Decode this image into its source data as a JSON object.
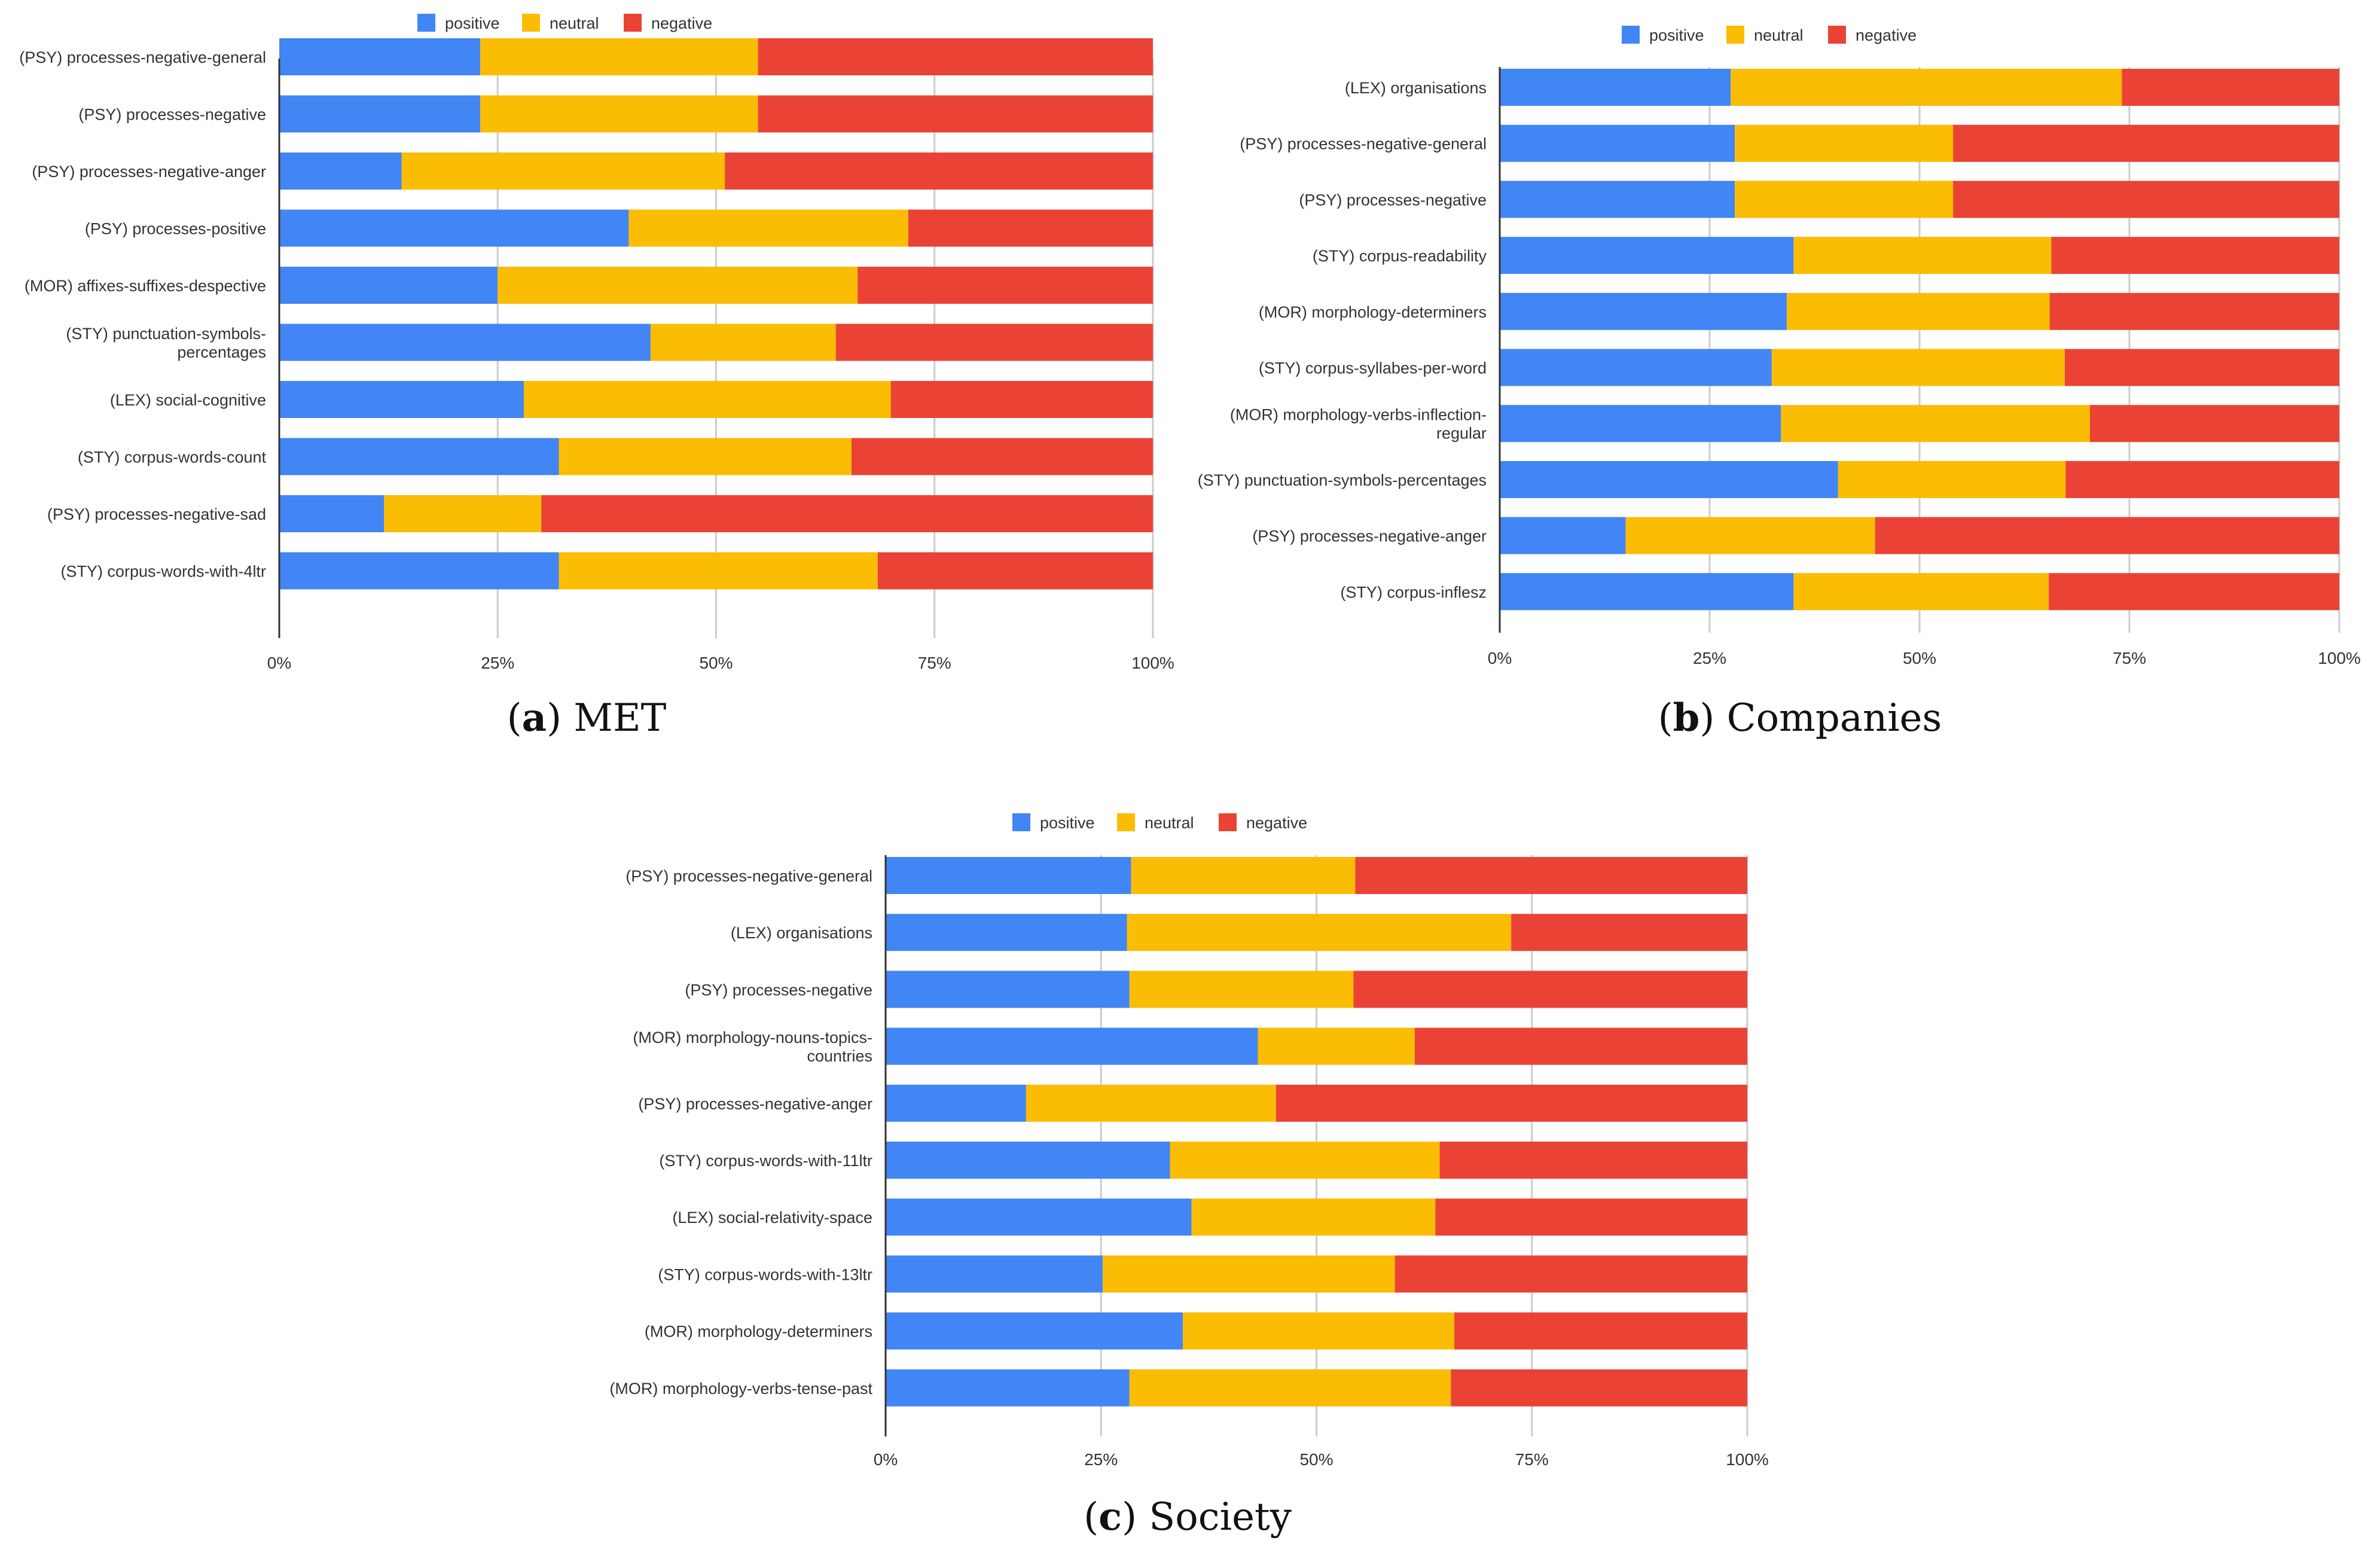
{
  "colors": {
    "positive": "#4285f4",
    "neutral": "#fbbc04",
    "negative": "#ea4335",
    "grid": "#cccccc",
    "axis": "#333333"
  },
  "chart_data": [
    {
      "id": "a",
      "type": "bar",
      "orientation": "horizontal",
      "stacked": "percent",
      "caption_letter": "a",
      "title": "MET",
      "legend": [
        "positive",
        "neutral",
        "negative"
      ],
      "legend_position": "top-center",
      "x_ticks": [
        "0%",
        "25%",
        "50%",
        "75%",
        "100%"
      ],
      "xlim": [
        0,
        100
      ],
      "categories": [
        [
          "(PSY) processes-negative-general"
        ],
        [
          "(PSY) processes-negative"
        ],
        [
          "(PSY) processes-negative-anger"
        ],
        [
          "(PSY) processes-positive"
        ],
        [
          "(MOR) affixes-suffixes-despective"
        ],
        [
          "(STY) punctuation-symbols-",
          "percentages"
        ],
        [
          "(LEX) social-cognitive"
        ],
        [
          "(STY) corpus-words-count"
        ],
        [
          "(PSY) processes-negative-sad"
        ],
        [
          "(STY) corpus-words-with-4ltr"
        ]
      ],
      "series": [
        {
          "name": "positive",
          "values": [
            23,
            23,
            14,
            40,
            25,
            42.5,
            28,
            32,
            12,
            32
          ]
        },
        {
          "name": "neutral",
          "values": [
            31.8,
            31.8,
            37,
            32,
            41.2,
            21.2,
            42,
            33.5,
            18,
            36.5
          ]
        },
        {
          "name": "negative",
          "values": [
            45.2,
            45.2,
            49,
            28,
            33.8,
            36.3,
            30,
            34.5,
            70,
            31.5
          ]
        }
      ]
    },
    {
      "id": "b",
      "type": "bar",
      "orientation": "horizontal",
      "stacked": "percent",
      "caption_letter": "b",
      "title": "Companies",
      "legend": [
        "positive",
        "neutral",
        "negative"
      ],
      "legend_position": "top-center",
      "x_ticks": [
        "0%",
        "25%",
        "50%",
        "75%",
        "100%"
      ],
      "xlim": [
        0,
        100
      ],
      "categories": [
        [
          "(LEX) organisations"
        ],
        [
          "(PSY) processes-negative-general"
        ],
        [
          "(PSY) processes-negative"
        ],
        [
          "(STY) corpus-readability"
        ],
        [
          "(MOR) morphology-determiners"
        ],
        [
          "(STY) corpus-syllabes-per-word"
        ],
        [
          "(MOR) morphology-verbs-inflection-",
          "regular"
        ],
        [
          "(STY) punctuation-symbols-percentages"
        ],
        [
          "(PSY) processes-negative-anger"
        ],
        [
          "(STY) corpus-inflesz"
        ]
      ],
      "series": [
        {
          "name": "positive",
          "values": [
            27.5,
            28,
            28,
            35,
            34.2,
            32.4,
            33.5,
            40.3,
            15,
            35
          ]
        },
        {
          "name": "neutral",
          "values": [
            46.6,
            26,
            26,
            30.7,
            31.3,
            34.9,
            36.8,
            27.1,
            29.7,
            30.4
          ]
        },
        {
          "name": "negative",
          "values": [
            25.9,
            46,
            46,
            34.3,
            34.5,
            32.7,
            29.7,
            32.6,
            55.3,
            34.6
          ]
        }
      ]
    },
    {
      "id": "c",
      "type": "bar",
      "orientation": "horizontal",
      "stacked": "percent",
      "caption_letter": "c",
      "title": "Society",
      "legend": [
        "positive",
        "neutral",
        "negative"
      ],
      "legend_position": "top-center",
      "x_ticks": [
        "0%",
        "25%",
        "50%",
        "75%",
        "100%"
      ],
      "xlim": [
        0,
        100
      ],
      "categories": [
        [
          "(PSY) processes-negative-general"
        ],
        [
          "(LEX) organisations"
        ],
        [
          "(PSY) processes-negative"
        ],
        [
          "(MOR) morphology-nouns-topics-",
          "countries"
        ],
        [
          "(PSY) processes-negative-anger"
        ],
        [
          "(STY) corpus-words-with-11ltr"
        ],
        [
          "(LEX) social-relativity-space"
        ],
        [
          "(STY) corpus-words-with-13ltr"
        ],
        [
          "(MOR) morphology-determiners"
        ],
        [
          "(MOR) morphology-verbs-tense-past"
        ]
      ],
      "series": [
        {
          "name": "positive",
          "values": [
            28.5,
            28,
            28.3,
            43.2,
            16.3,
            33,
            35.5,
            25.2,
            34.5,
            28.3
          ]
        },
        {
          "name": "neutral",
          "values": [
            26,
            44.6,
            26,
            18.2,
            29,
            31.3,
            28.3,
            33.9,
            31.5,
            37.3
          ]
        },
        {
          "name": "negative",
          "values": [
            45.5,
            27.4,
            45.7,
            38.6,
            54.7,
            35.7,
            36.2,
            40.9,
            34,
            34.4
          ]
        }
      ]
    }
  ]
}
